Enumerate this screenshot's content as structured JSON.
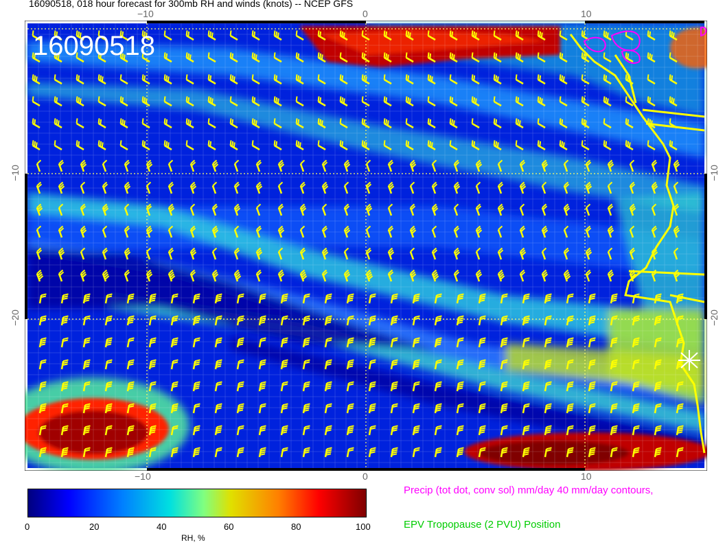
{
  "title": "16090518, 018 hour forecast for 300mb RH and winds (knots) -- NCEP GFS",
  "stamp": "16090518",
  "axes": {
    "x_ticks_top": [
      "−10",
      "0",
      "10"
    ],
    "x_ticks_bottom": [
      "−10",
      "0",
      "10"
    ],
    "y_ticks_left": [
      "−10",
      "−20"
    ],
    "y_ticks_right": [
      "−10",
      "−20"
    ]
  },
  "colorbar": {
    "ticks": [
      "0",
      "20",
      "40",
      "60",
      "80",
      "100"
    ],
    "label": "RH, %",
    "colors": [
      "#00007f",
      "#0000ff",
      "#0080ff",
      "#00e0e0",
      "#80ff80",
      "#e0e000",
      "#ff8000",
      "#ff0000",
      "#7f0000"
    ]
  },
  "legend": {
    "precip": "Precip (tot dot, conv sol) mm/day 40 mm/day contours,",
    "epv": "EPV Tropopause (2 PVU) Position"
  },
  "colors": {
    "barb": "#ffff00",
    "coast": "#ffff00",
    "precip_contour": "#ff00ff",
    "grid": "#ffffff"
  }
}
